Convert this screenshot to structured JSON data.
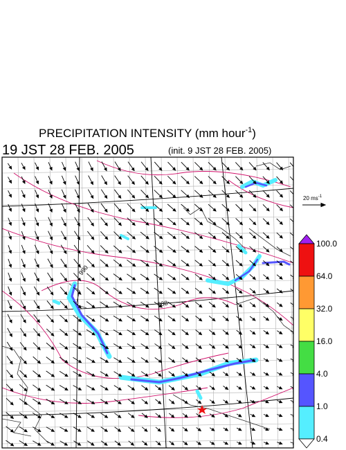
{
  "header": {
    "title": "PRECIPITATION INTENSITY (mm hour",
    "title_exponent": "-1",
    "title_close": ")",
    "valid_time": "19 JST 28 FEB. 2005",
    "init_time": "(init. 9 JST 28 FEB. 2005)"
  },
  "map": {
    "contour_labels": [
      "990",
      "988"
    ]
  },
  "vector_scale": {
    "label": "20 ms",
    "exponent": "-1"
  },
  "colorbar": {
    "levels": [
      {
        "value": 100,
        "label": "100.0"
      },
      {
        "value": 64,
        "label": "64.0"
      },
      {
        "value": 32,
        "label": "32.0"
      },
      {
        "value": 16,
        "label": "16.0"
      },
      {
        "value": 4,
        "label": "4.0"
      },
      {
        "value": 1,
        "label": "1.0"
      },
      {
        "value": 0.4,
        "label": "0.4"
      }
    ],
    "colors": [
      "#a020f0",
      "#ee1111",
      "#ff9933",
      "#ffff66",
      "#44dd44",
      "#5555ff",
      "#55eeff",
      "#ffffff"
    ]
  }
}
